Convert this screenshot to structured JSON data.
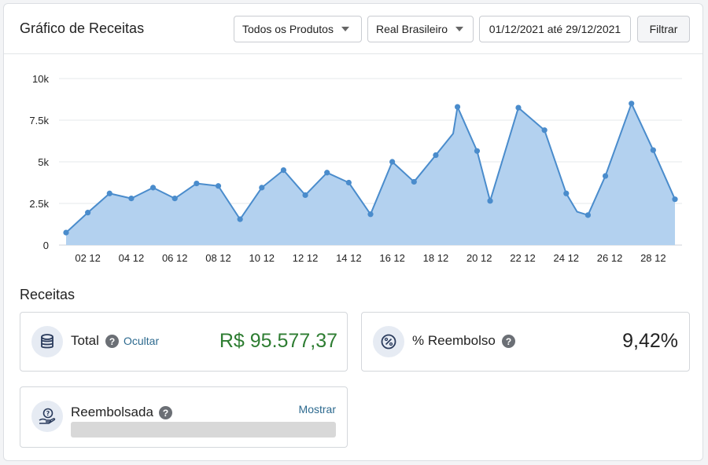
{
  "header": {
    "title": "Gráfico de Receitas",
    "product_select": "Todos os Produtos",
    "currency_select": "Real Brasileiro",
    "date_range": "01/12/2021 até 29/12/2021",
    "filter_label": "Filtrar"
  },
  "chart_data": {
    "type": "area",
    "y_ticks": [
      "0",
      "2.5k",
      "5k",
      "7.5k",
      "10k"
    ],
    "ylim": [
      0,
      10000
    ],
    "grid": true,
    "color": "#4a8ccc",
    "fill_color": "#b3d1ef",
    "x_tick_labels": [
      "02 12",
      "04 12",
      "06 12",
      "08 12",
      "10 12",
      "12 12",
      "14 12",
      "16 12",
      "18 12",
      "20 12",
      "22 12",
      "24 12",
      "26 12",
      "28 12"
    ],
    "x_tick_days": [
      2,
      4,
      6,
      8,
      10,
      12,
      14,
      16,
      18,
      20,
      22,
      24,
      26,
      28
    ],
    "points": [
      {
        "x": 1,
        "y": 750
      },
      {
        "x": 2,
        "y": 1950
      },
      {
        "x": 3,
        "y": 3100
      },
      {
        "x": 4,
        "y": 2800
      },
      {
        "x": 5,
        "y": 3450
      },
      {
        "x": 6,
        "y": 2800
      },
      {
        "x": 7,
        "y": 3700
      },
      {
        "x": 8,
        "y": 3550
      },
      {
        "x": 9,
        "y": 1550
      },
      {
        "x": 10,
        "y": 3450
      },
      {
        "x": 11,
        "y": 4500
      },
      {
        "x": 12,
        "y": 3000
      },
      {
        "x": 13,
        "y": 4350
      },
      {
        "x": 14,
        "y": 3750
      },
      {
        "x": 15,
        "y": 1850
      },
      {
        "x": 16,
        "y": 5000
      },
      {
        "x": 17,
        "y": 3800
      },
      {
        "x": 18,
        "y": 5400
      },
      {
        "x": 19,
        "y": 8300
      },
      {
        "x": 19.9,
        "y": 5650
      },
      {
        "x": 20.5,
        "y": 2650
      },
      {
        "x": 21.8,
        "y": 8250
      },
      {
        "x": 23,
        "y": 6900
      },
      {
        "x": 24,
        "y": 3100
      },
      {
        "x": 25,
        "y": 1800
      },
      {
        "x": 25.8,
        "y": 4150
      },
      {
        "x": 27,
        "y": 8500
      },
      {
        "x": 28,
        "y": 5700
      },
      {
        "x": 29,
        "y": 2750
      }
    ],
    "line_extra": [
      {
        "x": 18.8,
        "y": 6700
      },
      {
        "x": 24.5,
        "y": 2000
      }
    ]
  },
  "receitas": {
    "title": "Receitas",
    "total": {
      "label": "Total",
      "help": "?",
      "link": "Ocultar",
      "value": "R$ 95.577,37",
      "value_color": "#2e7d32",
      "icon": "database-icon"
    },
    "refund_pct": {
      "label": "% Reembolso",
      "help": "?",
      "value": "9,42%",
      "icon": "percent-icon"
    },
    "refunded": {
      "label": "Reembolsada",
      "help": "?",
      "link": "Mostrar",
      "icon": "refund-hand-icon"
    }
  }
}
